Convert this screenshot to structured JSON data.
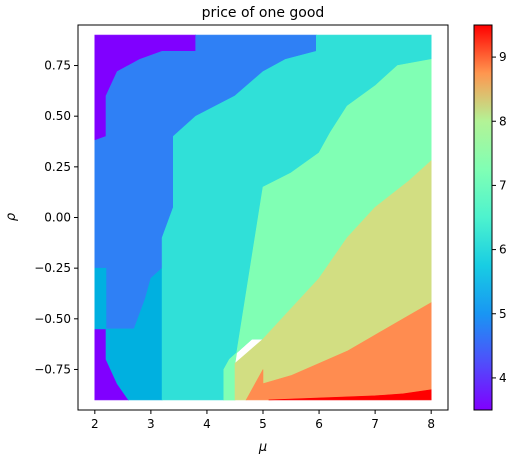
{
  "chart_data": {
    "type": "heatmap",
    "title": "price of one good",
    "xlabel": "μ",
    "ylabel": "ρ",
    "xlim": [
      1.7,
      8.3
    ],
    "ylim": [
      -0.95,
      0.95
    ],
    "x_ticks": [
      2,
      3,
      4,
      5,
      6,
      7,
      8
    ],
    "x_tick_labels": [
      "2",
      "3",
      "4",
      "5",
      "6",
      "7",
      "8"
    ],
    "y_ticks": [
      -0.75,
      -0.5,
      -0.25,
      0.0,
      0.25,
      0.5,
      0.75
    ],
    "y_tick_labels": [
      "−0.75",
      "−0.50",
      "−0.25",
      "0.00",
      "0.25",
      "0.50",
      "0.75"
    ],
    "colorbar": {
      "colormap": "rainbow",
      "range": [
        3.5,
        9.5
      ],
      "ticks": [
        4,
        5,
        6,
        7,
        8,
        9
      ],
      "tick_labels": [
        "4",
        "5",
        "6",
        "7",
        "8",
        "9"
      ]
    },
    "data_extent": {
      "x": [
        2.0,
        8.0
      ],
      "y": [
        -0.9,
        0.9
      ]
    },
    "grid": false,
    "regions": [
      {
        "price": 3.5,
        "color": "#8000ff",
        "polygon": [
          [
            2.0,
            0.9
          ],
          [
            3.8,
            0.9
          ],
          [
            3.8,
            0.82
          ],
          [
            3.2,
            0.82
          ],
          [
            2.8,
            0.78
          ],
          [
            2.4,
            0.72
          ],
          [
            2.2,
            0.6
          ],
          [
            2.2,
            0.4
          ],
          [
            2.0,
            0.38
          ]
        ]
      },
      {
        "price": 3.5,
        "color": "#8000ff",
        "polygon": [
          [
            2.0,
            -0.55
          ],
          [
            2.2,
            -0.55
          ],
          [
            2.2,
            -0.7
          ],
          [
            2.4,
            -0.82
          ],
          [
            2.6,
            -0.9
          ],
          [
            2.0,
            -0.9
          ]
        ]
      },
      {
        "price": 4.5,
        "color": "#2f80f5",
        "polygon": [
          [
            3.8,
            0.9
          ],
          [
            5.95,
            0.9
          ],
          [
            5.95,
            0.82
          ],
          [
            5.4,
            0.78
          ],
          [
            5.0,
            0.72
          ],
          [
            4.5,
            0.6
          ],
          [
            3.8,
            0.5
          ],
          [
            3.4,
            0.4
          ],
          [
            3.4,
            0.05
          ],
          [
            3.2,
            -0.1
          ],
          [
            3.2,
            -0.25
          ],
          [
            3.0,
            -0.3
          ],
          [
            2.9,
            -0.4
          ],
          [
            2.7,
            -0.55
          ],
          [
            2.2,
            -0.55
          ],
          [
            2.2,
            -0.25
          ],
          [
            2.0,
            -0.25
          ],
          [
            2.0,
            0.38
          ],
          [
            2.2,
            0.4
          ],
          [
            2.2,
            0.6
          ],
          [
            2.4,
            0.72
          ],
          [
            2.8,
            0.78
          ],
          [
            3.2,
            0.82
          ],
          [
            3.8,
            0.82
          ]
        ]
      },
      {
        "price": 5.0,
        "color": "#00b0e0",
        "polygon": [
          [
            2.0,
            -0.25
          ],
          [
            2.2,
            -0.25
          ],
          [
            2.2,
            -0.55
          ],
          [
            2.7,
            -0.55
          ],
          [
            2.9,
            -0.4
          ],
          [
            3.0,
            -0.3
          ],
          [
            3.2,
            -0.25
          ],
          [
            3.2,
            -0.9
          ],
          [
            2.6,
            -0.9
          ],
          [
            2.4,
            -0.82
          ],
          [
            2.2,
            -0.7
          ],
          [
            2.2,
            -0.55
          ],
          [
            2.0,
            -0.55
          ]
        ]
      },
      {
        "price": 6.0,
        "color": "#30e0d8",
        "polygon": [
          [
            5.95,
            0.9
          ],
          [
            8.0,
            0.9
          ],
          [
            8.0,
            0.78
          ],
          [
            7.4,
            0.75
          ],
          [
            7.0,
            0.65
          ],
          [
            6.5,
            0.55
          ],
          [
            6.2,
            0.42
          ],
          [
            6.0,
            0.32
          ],
          [
            5.5,
            0.22
          ],
          [
            5.0,
            0.15
          ],
          [
            5.0,
            -0.6
          ],
          [
            4.8,
            -0.6
          ],
          [
            4.6,
            -0.65
          ],
          [
            4.4,
            -0.7
          ],
          [
            4.3,
            -0.75
          ],
          [
            4.3,
            -0.9
          ],
          [
            3.2,
            -0.9
          ],
          [
            3.2,
            -0.25
          ],
          [
            3.2,
            -0.1
          ],
          [
            3.4,
            0.05
          ],
          [
            3.4,
            0.4
          ],
          [
            3.8,
            0.5
          ],
          [
            4.5,
            0.6
          ],
          [
            5.0,
            0.72
          ],
          [
            5.4,
            0.78
          ],
          [
            5.95,
            0.82
          ]
        ]
      },
      {
        "price": 7.0,
        "color": "#80ffb4",
        "polygon": [
          [
            8.0,
            0.78
          ],
          [
            8.0,
            0.28
          ],
          [
            7.6,
            0.18
          ],
          [
            7.0,
            0.05
          ],
          [
            6.5,
            -0.1
          ],
          [
            6.0,
            -0.3
          ],
          [
            5.5,
            -0.45
          ],
          [
            5.0,
            -0.6
          ],
          [
            4.8,
            -0.6
          ],
          [
            4.6,
            -0.65
          ],
          [
            4.4,
            -0.7
          ],
          [
            4.3,
            -0.75
          ],
          [
            4.3,
            -0.9
          ],
          [
            4.5,
            -0.9
          ],
          [
            4.5,
            -0.72
          ],
          [
            5.0,
            0.15
          ],
          [
            5.5,
            0.22
          ],
          [
            6.0,
            0.32
          ],
          [
            6.2,
            0.42
          ],
          [
            6.5,
            0.55
          ],
          [
            7.0,
            0.65
          ],
          [
            7.4,
            0.75
          ]
        ]
      },
      {
        "price": 7.0,
        "color": "#80ffb4",
        "polygon": [
          [
            4.5,
            -0.72
          ],
          [
            4.5,
            -0.9
          ],
          [
            4.3,
            -0.9
          ],
          [
            4.3,
            -0.75
          ]
        ]
      },
      {
        "price": 7.5,
        "color": "#d2de82",
        "polygon": [
          [
            8.0,
            0.28
          ],
          [
            8.0,
            -0.42
          ],
          [
            7.5,
            -0.5
          ],
          [
            7.0,
            -0.58
          ],
          [
            6.5,
            -0.66
          ],
          [
            6.0,
            -0.72
          ],
          [
            5.5,
            -0.78
          ],
          [
            5.0,
            -0.82
          ],
          [
            5.0,
            -0.75
          ],
          [
            4.7,
            -0.9
          ],
          [
            4.5,
            -0.9
          ],
          [
            4.5,
            -0.72
          ],
          [
            5.0,
            -0.6
          ],
          [
            5.5,
            -0.45
          ],
          [
            6.0,
            -0.3
          ],
          [
            6.5,
            -0.1
          ],
          [
            7.0,
            0.05
          ],
          [
            7.6,
            0.18
          ]
        ]
      },
      {
        "price": 8.5,
        "color": "#ff8c50",
        "polygon": [
          [
            8.0,
            -0.42
          ],
          [
            8.0,
            -0.85
          ],
          [
            7.5,
            -0.87
          ],
          [
            7.0,
            -0.88
          ],
          [
            5.1,
            -0.9
          ],
          [
            5.0,
            -0.9
          ],
          [
            4.7,
            -0.9
          ],
          [
            5.0,
            -0.75
          ],
          [
            5.0,
            -0.82
          ],
          [
            5.5,
            -0.78
          ],
          [
            6.0,
            -0.72
          ],
          [
            6.5,
            -0.66
          ],
          [
            7.0,
            -0.58
          ],
          [
            7.5,
            -0.5
          ]
        ]
      },
      {
        "price": 9.5,
        "color": "#ff0000",
        "polygon": [
          [
            8.0,
            -0.85
          ],
          [
            8.0,
            -0.9
          ],
          [
            5.1,
            -0.9
          ],
          [
            7.0,
            -0.88
          ],
          [
            7.5,
            -0.87
          ]
        ]
      }
    ]
  }
}
